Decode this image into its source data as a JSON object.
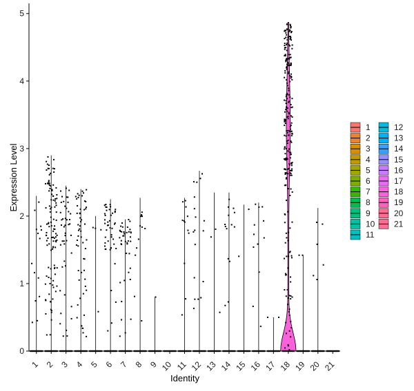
{
  "chart_data": {
    "type": "violin",
    "title": "",
    "xlabel": "Identity",
    "ylabel": "Expression Level",
    "ylim": [
      0,
      5.15
    ],
    "yticks": [
      0,
      1,
      2,
      3,
      4,
      5
    ],
    "grid": false,
    "legend_position": "right",
    "categories": [
      "1",
      "2",
      "3",
      "4",
      "5",
      "6",
      "7",
      "8",
      "9",
      "10",
      "11",
      "12",
      "13",
      "14",
      "15",
      "16",
      "17",
      "18",
      "19",
      "20",
      "21"
    ],
    "colors": [
      "#F8766D",
      "#EA8331",
      "#D89000",
      "#C09B00",
      "#A3A500",
      "#7CAE00",
      "#39B600",
      "#00BB4E",
      "#00BF7D",
      "#00C1A3",
      "#00BFC4",
      "#00BAE0",
      "#00B0F6",
      "#35A2FF",
      "#9590FF",
      "#C77CFF",
      "#E76BF3",
      "#FA62DB",
      "#FF62BC",
      "#FF6C91",
      "#FF6C91"
    ],
    "max_values": [
      2.3,
      2.9,
      2.45,
      2.4,
      2.0,
      2.25,
      1.95,
      2.27,
      0.8,
      0.0,
      2.27,
      2.67,
      2.35,
      2.35,
      2.17,
      2.2,
      0.5,
      4.87,
      1.42,
      2.12,
      0.0
    ],
    "nonzero_points": [
      14,
      110,
      45,
      55,
      4,
      45,
      40,
      12,
      1,
      0,
      12,
      18,
      3,
      14,
      2,
      12,
      2,
      260,
      2,
      6,
      0
    ],
    "highlight_category": "18"
  }
}
